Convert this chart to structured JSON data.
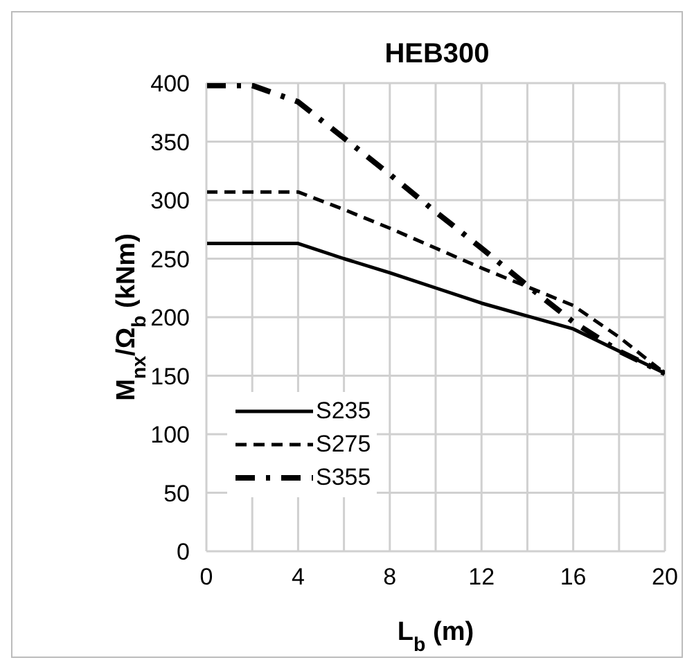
{
  "chart_data": {
    "type": "line",
    "title": "HEB300",
    "xlabel": "L$_{b}$ (m)",
    "ylabel": "M$_{nx}$/Ω$_{b}$ (kNm)",
    "x": [
      0,
      2,
      4,
      6,
      8,
      10,
      12,
      14,
      16,
      18,
      20
    ],
    "series": [
      {
        "name": "S235",
        "color": "#000000",
        "line_style": "solid",
        "values": [
          263,
          263,
          263,
          250,
          238,
          225,
          212,
          201,
          190,
          171,
          152
        ]
      },
      {
        "name": "S275",
        "color": "#000000",
        "line_style": "dashed",
        "values": [
          307,
          307,
          307,
          292,
          276,
          259,
          242,
          226,
          210,
          183,
          152
        ]
      },
      {
        "name": "S355",
        "color": "#000000",
        "line_style": "dashdot",
        "values": [
          398,
          398,
          384,
          353,
          322,
          290,
          259,
          227,
          196,
          171,
          152
        ]
      }
    ],
    "xlim": [
      0,
      20
    ],
    "xticks": [
      0,
      4,
      8,
      12,
      16,
      20
    ],
    "ylim": [
      0,
      400
    ],
    "yticks": [
      0,
      50,
      100,
      150,
      200,
      250,
      300,
      350,
      400
    ],
    "grid": true,
    "legend": "bottom left",
    "marker": "none"
  }
}
